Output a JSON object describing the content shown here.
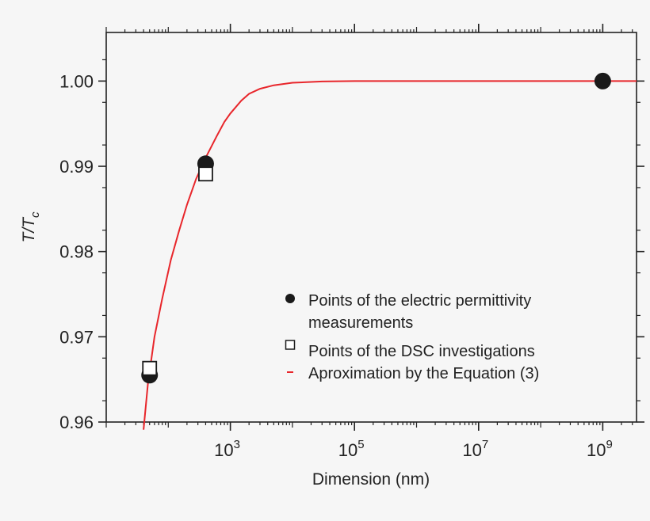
{
  "chart_data": {
    "type": "scatter",
    "xlabel": "Dimension (nm)",
    "ylabel_main": "T/T",
    "ylabel_sub": "c",
    "x_scale": "log",
    "xlim": [
      10,
      3500000000.0
    ],
    "ylim": [
      0.96,
      1.0057
    ],
    "x_ticks": [
      {
        "value": 1000,
        "base": "10",
        "exp": "3"
      },
      {
        "value": 100000,
        "base": "10",
        "exp": "5"
      },
      {
        "value": 10000000,
        "base": "10",
        "exp": "7"
      },
      {
        "value": 1000000000,
        "base": "10",
        "exp": "9"
      }
    ],
    "y_ticks": [
      {
        "value": 0.96,
        "label": "0.96"
      },
      {
        "value": 0.97,
        "label": "0.97"
      },
      {
        "value": 0.98,
        "label": "0.98"
      },
      {
        "value": 0.99,
        "label": "0.99"
      },
      {
        "value": 1.0,
        "label": "1.00"
      }
    ],
    "series": [
      {
        "name": "Points of the electric permittivity measurements",
        "name_lines": [
          "Points of the electric permittivity",
          "measurements"
        ],
        "marker": "filled-circle",
        "color": "#1a1a1a",
        "points": [
          [
            50,
            0.9655
          ],
          [
            400,
            0.9903
          ],
          [
            1000000000,
            1.0
          ]
        ]
      },
      {
        "name": "Points of the DSC investigations",
        "name_lines": [
          "Points of the DSC investigations"
        ],
        "marker": "open-square",
        "color": "#1a1a1a",
        "points": [
          [
            50,
            0.9663
          ],
          [
            400,
            0.9891
          ]
        ]
      },
      {
        "name": "Aproximation by the Equation (3)",
        "name_lines": [
          "Aproximation by the Equation (3)"
        ],
        "marker": "line",
        "color": "#e8262b",
        "points": [
          [
            40,
            0.9591
          ],
          [
            47,
            0.9645
          ],
          [
            60,
            0.97
          ],
          [
            80,
            0.9745
          ],
          [
            110,
            0.979
          ],
          [
            150,
            0.9825
          ],
          [
            200,
            0.9855
          ],
          [
            280,
            0.9885
          ],
          [
            400,
            0.991
          ],
          [
            600,
            0.9935
          ],
          [
            800,
            0.9952
          ],
          [
            1000,
            0.9962
          ],
          [
            1500,
            0.9977
          ],
          [
            2000,
            0.9985
          ],
          [
            3000,
            0.9991
          ],
          [
            5000,
            0.9995
          ],
          [
            10000,
            0.9998
          ],
          [
            30000,
            0.99995
          ],
          [
            100000,
            1.0
          ],
          [
            3500000000,
            1.0
          ]
        ]
      }
    ],
    "grid": false,
    "legend_position": "bottom-right",
    "colors": {
      "axis": "#222222",
      "fit": "#e8262b",
      "marker": "#1a1a1a"
    }
  }
}
